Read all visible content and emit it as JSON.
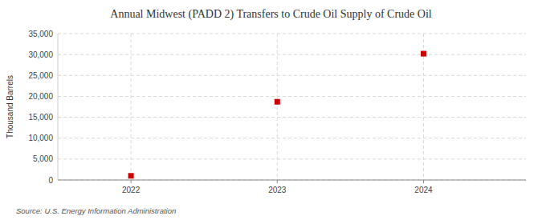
{
  "chart_data": {
    "type": "scatter",
    "title": "Annual Midwest (PADD 2) Transfers to Crude Oil Supply of Crude Oil",
    "ylabel": "Thousand Barrels",
    "source": "Source: U.S. Energy Information Administration",
    "x": [
      2022,
      2023,
      2024
    ],
    "values": [
      1000,
      18700,
      30200
    ],
    "color": "#cc0000",
    "marker": "square",
    "xlim": [
      2021.5,
      2024.7
    ],
    "ylim": [
      0,
      35000
    ],
    "xticks": [
      2022,
      2023,
      2024
    ],
    "yticks": [
      0,
      {
        "value": 5000,
        "label": "5,000"
      },
      {
        "value": 10000,
        "label": "10,000"
      },
      {
        "value": 15000,
        "label": "15,000"
      },
      {
        "value": 20000,
        "label": "20,000"
      },
      {
        "value": 25000,
        "label": "25,000"
      },
      {
        "value": 30000,
        "label": "30,000"
      },
      {
        "value": 35000,
        "label": "35,000"
      }
    ],
    "grid": true
  }
}
